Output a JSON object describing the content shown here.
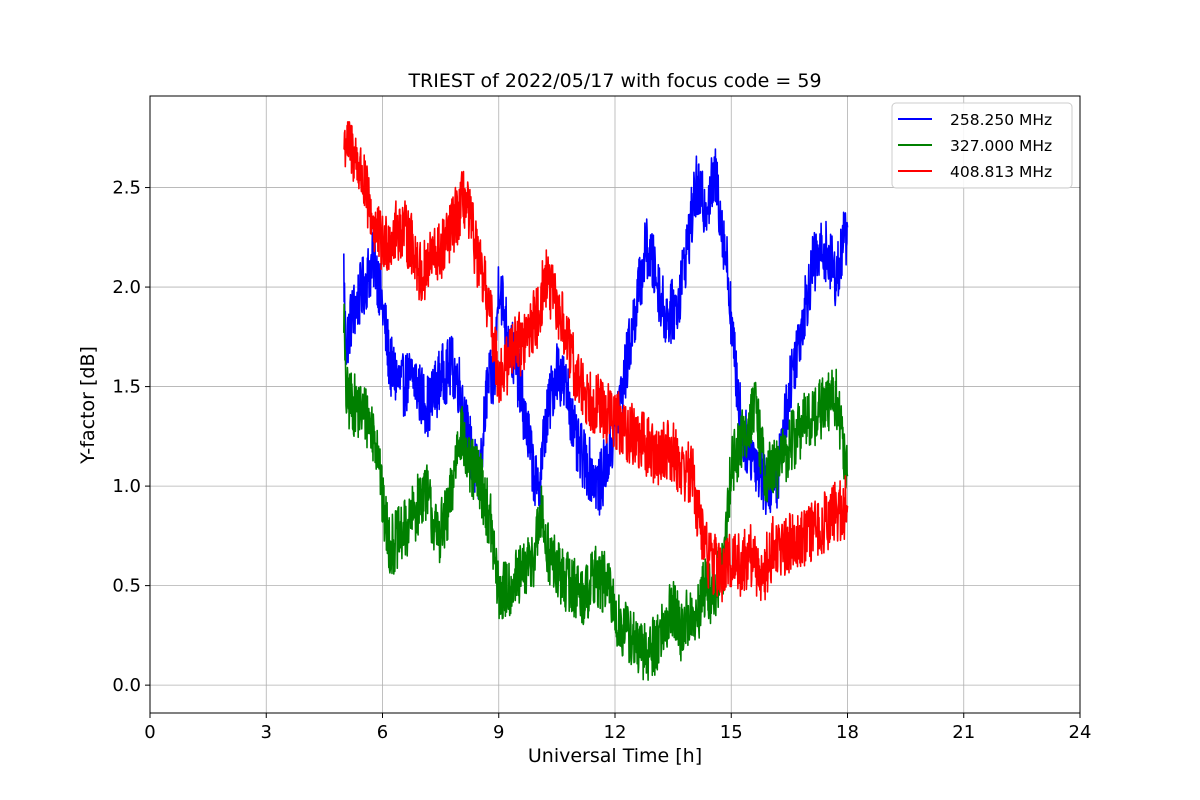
{
  "chart_data": {
    "type": "line",
    "title": "TRIEST of 2022/05/17 with focus code = 59",
    "xlabel": "Universal Time [h]",
    "ylabel": "Y-factor [dB]",
    "xlim": [
      0,
      24
    ],
    "ylim": [
      -0.14,
      2.96
    ],
    "xticks": [
      0,
      3,
      6,
      9,
      12,
      15,
      18,
      21,
      24
    ],
    "xtick_labels": [
      "0",
      "3",
      "6",
      "9",
      "12",
      "15",
      "18",
      "21",
      "24"
    ],
    "yticks": [
      0.0,
      0.5,
      1.0,
      1.5,
      2.0,
      2.5
    ],
    "ytick_labels": [
      "0.0",
      "0.5",
      "1.0",
      "1.5",
      "2.0",
      "2.5"
    ],
    "grid": true,
    "legend_position": "top-right",
    "series": [
      {
        "name": "258.250 MHz",
        "color": "#0000ff",
        "x": [
          5.0,
          5.05,
          5.2,
          5.5,
          5.8,
          6.0,
          6.2,
          6.5,
          6.8,
          7.0,
          7.2,
          7.5,
          7.8,
          8.0,
          8.2,
          8.5,
          8.7,
          8.9,
          9.0,
          9.2,
          9.5,
          9.8,
          10.0,
          10.2,
          10.5,
          10.8,
          11.0,
          11.3,
          11.6,
          11.9,
          12.2,
          12.5,
          12.8,
          13.0,
          13.3,
          13.6,
          13.9,
          14.1,
          14.3,
          14.6,
          14.9,
          15.1,
          15.3,
          15.6,
          15.9,
          16.2,
          16.5,
          16.8,
          17.1,
          17.4,
          17.7,
          18.0
        ],
        "y": [
          2.1,
          1.7,
          1.85,
          2.0,
          2.15,
          1.9,
          1.6,
          1.5,
          1.55,
          1.45,
          1.4,
          1.55,
          1.6,
          1.5,
          1.25,
          1.0,
          1.5,
          1.55,
          2.05,
          1.8,
          1.55,
          1.2,
          0.95,
          1.3,
          1.6,
          1.45,
          1.2,
          1.1,
          1.0,
          1.2,
          1.5,
          1.85,
          2.2,
          2.1,
          1.85,
          1.9,
          2.25,
          2.5,
          2.4,
          2.55,
          2.1,
          1.6,
          1.25,
          1.15,
          1.0,
          1.05,
          1.5,
          1.8,
          2.1,
          2.2,
          2.05,
          2.3
        ]
      },
      {
        "name": "327.000 MHz",
        "color": "#008000",
        "x": [
          5.0,
          5.05,
          5.3,
          5.6,
          5.9,
          6.0,
          6.2,
          6.5,
          6.8,
          7.1,
          7.4,
          7.7,
          8.0,
          8.2,
          8.5,
          8.8,
          9.0,
          9.3,
          9.6,
          9.9,
          10.1,
          10.3,
          10.6,
          10.9,
          11.2,
          11.5,
          11.8,
          12.1,
          12.4,
          12.7,
          13.0,
          13.3,
          13.5,
          13.7,
          13.9,
          14.1,
          14.3,
          14.5,
          14.8,
          15.0,
          15.3,
          15.6,
          15.9,
          16.2,
          16.5,
          16.8,
          17.1,
          17.4,
          17.7,
          18.0
        ],
        "y": [
          1.9,
          1.45,
          1.4,
          1.35,
          1.2,
          0.9,
          0.7,
          0.75,
          0.85,
          1.0,
          0.75,
          0.85,
          1.3,
          1.1,
          1.05,
          0.8,
          0.45,
          0.5,
          0.55,
          0.65,
          0.85,
          0.65,
          0.55,
          0.5,
          0.45,
          0.55,
          0.5,
          0.3,
          0.25,
          0.15,
          0.2,
          0.3,
          0.4,
          0.25,
          0.35,
          0.3,
          0.5,
          0.45,
          0.6,
          1.1,
          1.25,
          1.4,
          1.05,
          1.1,
          1.2,
          1.3,
          1.35,
          1.4,
          1.45,
          1.05
        ]
      },
      {
        "name": "408.813 MHz",
        "color": "#ff0000",
        "x": [
          5.0,
          5.05,
          5.2,
          5.4,
          5.6,
          5.8,
          6.0,
          6.2,
          6.5,
          6.8,
          7.0,
          7.3,
          7.6,
          7.9,
          8.1,
          8.3,
          8.5,
          8.7,
          8.9,
          9.0,
          9.2,
          9.4,
          9.6,
          9.8,
          10.0,
          10.2,
          10.4,
          10.6,
          10.8,
          11.0,
          11.3,
          11.6,
          11.9,
          12.2,
          12.5,
          12.8,
          13.1,
          13.4,
          13.7,
          14.0,
          14.2,
          14.4,
          14.6,
          14.8,
          15.0,
          15.2,
          15.5,
          15.8,
          16.1,
          16.4,
          16.7,
          17.0,
          17.3,
          17.6,
          18.0
        ],
        "y": [
          2.7,
          2.75,
          2.7,
          2.6,
          2.45,
          2.3,
          2.2,
          2.25,
          2.3,
          2.2,
          2.05,
          2.15,
          2.2,
          2.35,
          2.45,
          2.3,
          2.1,
          1.95,
          1.7,
          1.55,
          1.6,
          1.75,
          1.7,
          1.8,
          1.85,
          2.05,
          1.95,
          1.85,
          1.7,
          1.55,
          1.45,
          1.4,
          1.35,
          1.3,
          1.25,
          1.2,
          1.15,
          1.2,
          1.1,
          1.05,
          0.8,
          0.65,
          0.6,
          0.55,
          0.65,
          0.6,
          0.65,
          0.55,
          0.7,
          0.7,
          0.75,
          0.75,
          0.8,
          0.85,
          0.9
        ]
      }
    ]
  }
}
